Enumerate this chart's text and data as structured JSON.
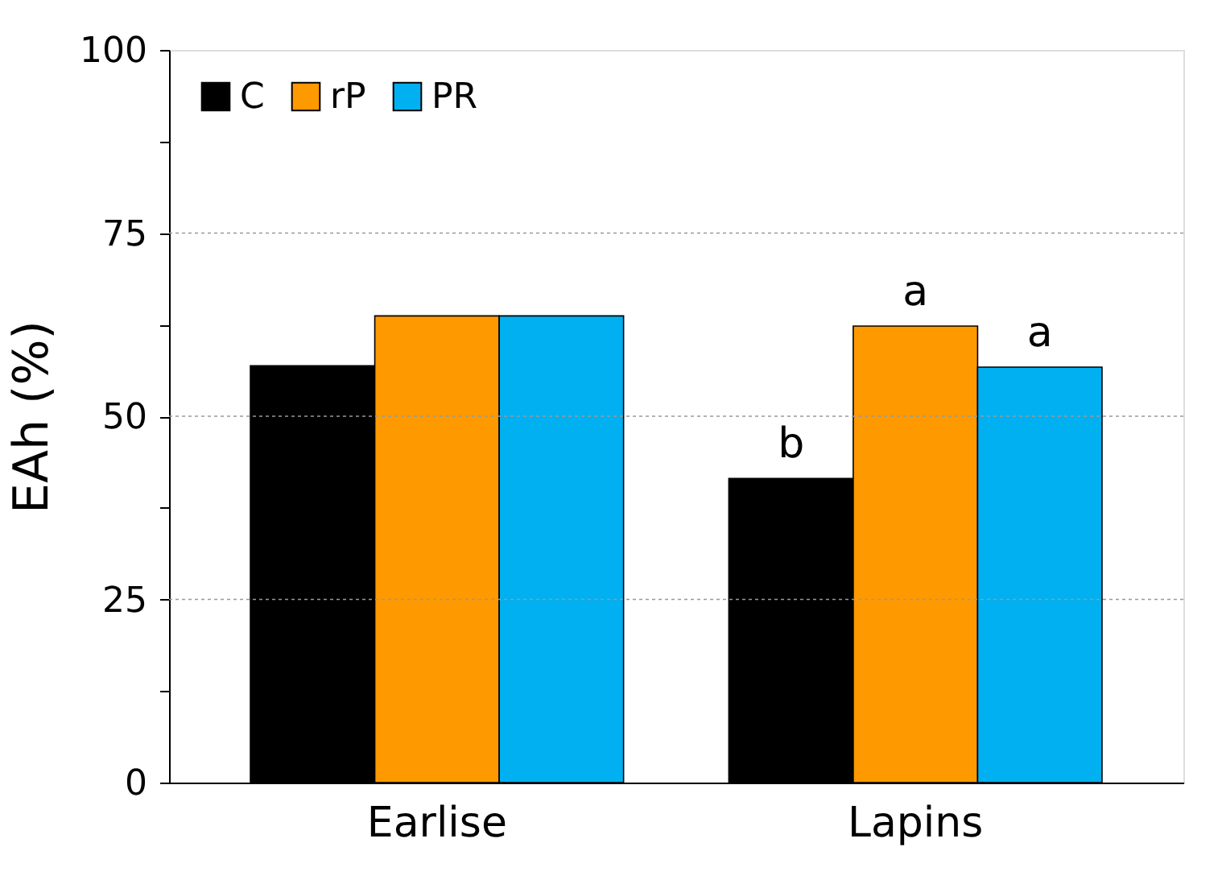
{
  "chart_data": {
    "type": "bar",
    "ylabel": "EAh (%)",
    "categories": [
      "Earlise",
      "Lapins"
    ],
    "series": [
      {
        "name": "C",
        "color": "#000000",
        "values": [
          56.9,
          41.5
        ]
      },
      {
        "name": "rP",
        "color": "#ff9900",
        "values": [
          63.7,
          62.3
        ]
      },
      {
        "name": "PR",
        "color": "#00b0f0",
        "values": [
          63.7,
          56.7
        ]
      }
    ],
    "ylim": [
      0,
      100
    ],
    "yticks": [
      0,
      {
        "value": 12.5,
        "label": null
      },
      25,
      {
        "value": 37.5,
        "label": null
      },
      50,
      {
        "value": 62.5,
        "label": null
      },
      75,
      {
        "value": 87.5,
        "label": null
      },
      100
    ],
    "grid": "y",
    "legend": "top left",
    "annotations": [
      "b",
      "a",
      "a"
    ]
  }
}
